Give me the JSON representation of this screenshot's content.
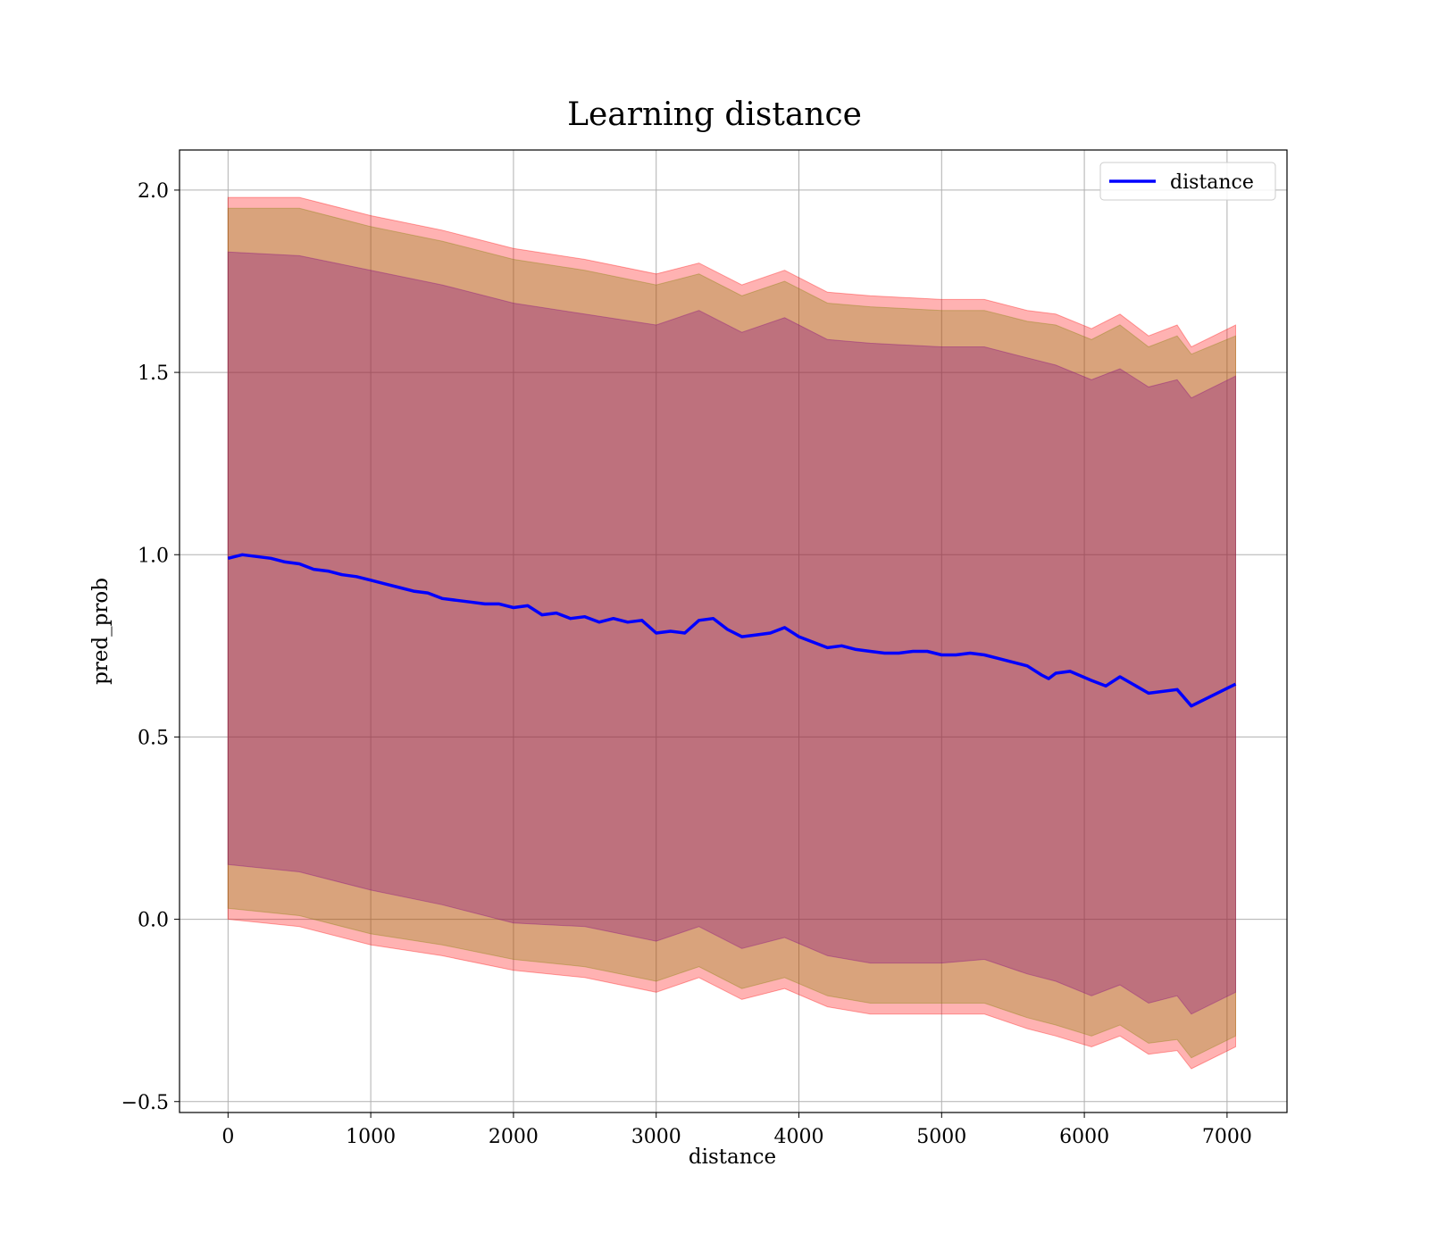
{
  "chart_data": {
    "type": "line",
    "title": "Learning distance",
    "xlabel": "distance",
    "ylabel": "pred_prob",
    "xlim": [
      -340,
      7420
    ],
    "ylim": [
      -0.53,
      2.11
    ],
    "xticks": [
      0,
      1000,
      2000,
      3000,
      4000,
      5000,
      6000,
      7000
    ],
    "yticks": [
      -0.5,
      0.0,
      0.5,
      1.0,
      1.5,
      2.0
    ],
    "xtick_labels": [
      "0",
      "1000",
      "2000",
      "3000",
      "4000",
      "5000",
      "6000",
      "7000"
    ],
    "ytick_labels": [
      "−0.5",
      "0.0",
      "0.5",
      "1.0",
      "1.5",
      "2.0"
    ],
    "grid": true,
    "legend": {
      "entries": [
        "distance"
      ],
      "position": "top-right"
    },
    "series": [
      {
        "name": "distance",
        "color": "#0000ff",
        "x": [
          0,
          100,
          200,
          300,
          400,
          500,
          600,
          700,
          800,
          900,
          1000,
          1100,
          1200,
          1300,
          1400,
          1500,
          1600,
          1700,
          1800,
          1900,
          2000,
          2100,
          2200,
          2300,
          2400,
          2500,
          2600,
          2700,
          2800,
          2900,
          3000,
          3100,
          3200,
          3300,
          3400,
          3500,
          3600,
          3700,
          3800,
          3900,
          4000,
          4100,
          4200,
          4300,
          4400,
          4500,
          4600,
          4700,
          4800,
          4900,
          5000,
          5100,
          5200,
          5300,
          5400,
          5500,
          5600,
          5700,
          5750,
          5800,
          5900,
          6050,
          6150,
          6250,
          6450,
          6650,
          6750,
          7060
        ],
        "y": [
          0.99,
          1.0,
          0.995,
          0.99,
          0.98,
          0.975,
          0.96,
          0.955,
          0.945,
          0.94,
          0.93,
          0.92,
          0.91,
          0.9,
          0.895,
          0.88,
          0.875,
          0.87,
          0.865,
          0.865,
          0.855,
          0.86,
          0.835,
          0.84,
          0.825,
          0.83,
          0.815,
          0.825,
          0.815,
          0.82,
          0.785,
          0.79,
          0.785,
          0.82,
          0.825,
          0.795,
          0.775,
          0.78,
          0.785,
          0.8,
          0.775,
          0.76,
          0.745,
          0.75,
          0.74,
          0.735,
          0.73,
          0.73,
          0.735,
          0.735,
          0.725,
          0.725,
          0.73,
          0.725,
          0.715,
          0.705,
          0.695,
          0.67,
          0.66,
          0.675,
          0.68,
          0.655,
          0.64,
          0.665,
          0.62,
          0.63,
          0.585,
          0.645
        ]
      }
    ],
    "bands": [
      {
        "color": "#ff0000",
        "opacity": 0.3,
        "x": [
          0,
          500,
          1000,
          1500,
          2000,
          2500,
          3000,
          3300,
          3600,
          3900,
          4200,
          4500,
          5000,
          5300,
          5600,
          5800,
          6050,
          6250,
          6450,
          6650,
          6750,
          7060
        ],
        "upper": [
          1.98,
          1.98,
          1.93,
          1.89,
          1.84,
          1.81,
          1.77,
          1.8,
          1.74,
          1.78,
          1.72,
          1.71,
          1.7,
          1.7,
          1.67,
          1.66,
          1.62,
          1.66,
          1.6,
          1.63,
          1.57,
          1.63
        ],
        "lower": [
          0.0,
          -0.02,
          -0.07,
          -0.1,
          -0.14,
          -0.16,
          -0.2,
          -0.16,
          -0.22,
          -0.19,
          -0.24,
          -0.26,
          -0.26,
          -0.26,
          -0.3,
          -0.32,
          -0.35,
          -0.32,
          -0.37,
          -0.36,
          -0.41,
          -0.35
        ]
      },
      {
        "color": "#808000",
        "opacity": 0.3,
        "x": [
          0,
          500,
          1000,
          1500,
          2000,
          2500,
          3000,
          3300,
          3600,
          3900,
          4200,
          4500,
          5000,
          5300,
          5600,
          5800,
          6050,
          6250,
          6450,
          6650,
          6750,
          7060
        ],
        "upper": [
          1.95,
          1.95,
          1.9,
          1.86,
          1.81,
          1.78,
          1.74,
          1.77,
          1.71,
          1.75,
          1.69,
          1.68,
          1.67,
          1.67,
          1.64,
          1.63,
          1.59,
          1.63,
          1.57,
          1.6,
          1.55,
          1.6
        ],
        "lower": [
          0.03,
          0.01,
          -0.04,
          -0.07,
          -0.11,
          -0.13,
          -0.17,
          -0.13,
          -0.19,
          -0.16,
          -0.21,
          -0.23,
          -0.23,
          -0.23,
          -0.27,
          -0.29,
          -0.32,
          -0.29,
          -0.34,
          -0.33,
          -0.38,
          -0.32
        ]
      },
      {
        "color": "#800080",
        "opacity": 0.3,
        "x": [
          0,
          500,
          1000,
          1500,
          2000,
          2500,
          3000,
          3300,
          3600,
          3900,
          4200,
          4500,
          5000,
          5300,
          5600,
          5800,
          6050,
          6250,
          6450,
          6650,
          6750,
          7060
        ],
        "upper": [
          1.83,
          1.82,
          1.78,
          1.74,
          1.69,
          1.66,
          1.63,
          1.67,
          1.61,
          1.65,
          1.59,
          1.58,
          1.57,
          1.57,
          1.54,
          1.52,
          1.48,
          1.51,
          1.46,
          1.48,
          1.43,
          1.49
        ],
        "lower": [
          0.15,
          0.13,
          0.08,
          0.04,
          -0.01,
          -0.02,
          -0.06,
          -0.02,
          -0.08,
          -0.05,
          -0.1,
          -0.12,
          -0.12,
          -0.11,
          -0.15,
          -0.17,
          -0.21,
          -0.18,
          -0.23,
          -0.21,
          -0.26,
          -0.2
        ]
      }
    ]
  }
}
